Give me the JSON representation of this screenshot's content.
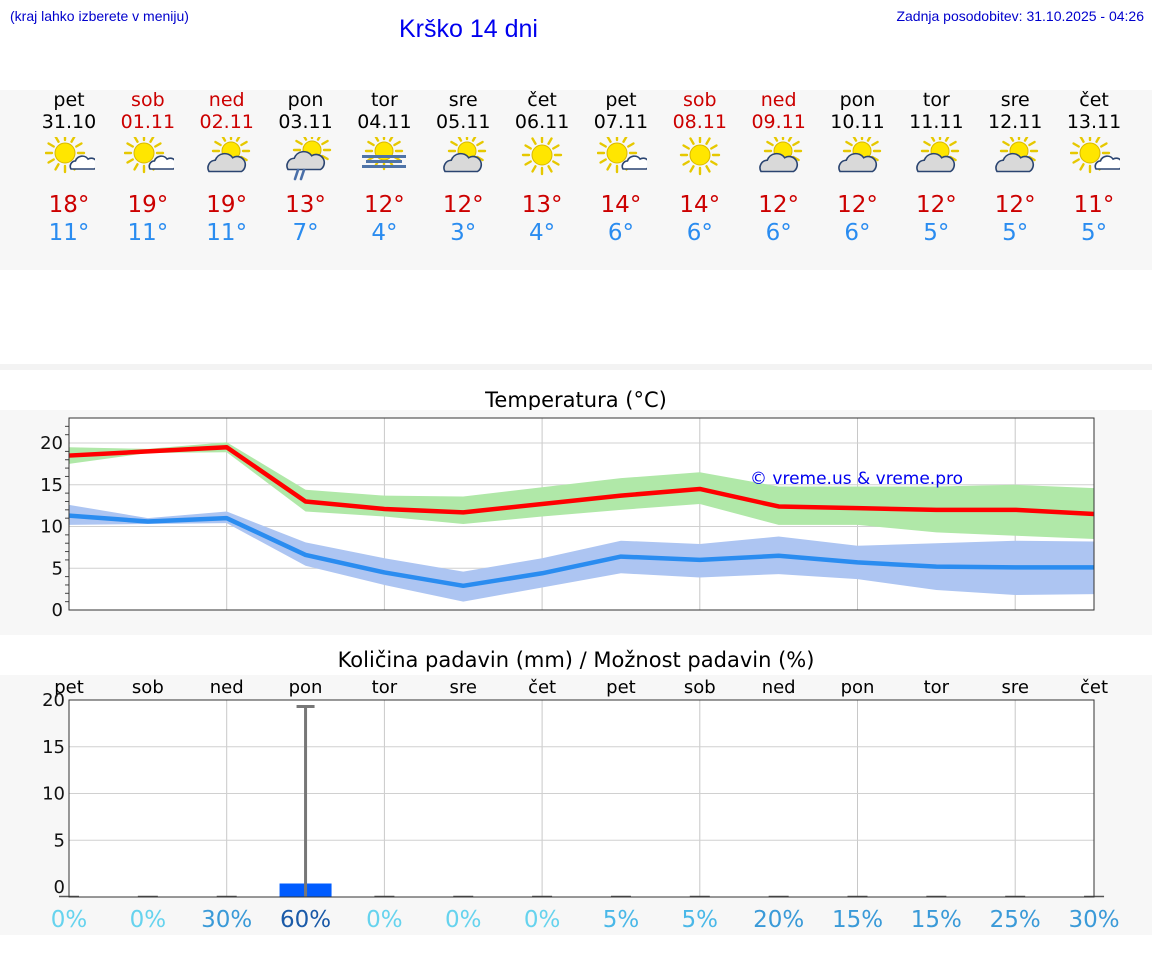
{
  "header": {
    "hint": "(kraj lahko izberete v meniju)",
    "title": "Krško 14 dni",
    "updated": "Zadnja posodobitev: 31.10.2025 - 04:26"
  },
  "colors": {
    "weekend": "#cc0000",
    "tmax": "#cc0000",
    "tmin": "#2a8cf0"
  },
  "days": [
    {
      "name": "pet",
      "date": "31.10",
      "weekend": false,
      "icon": "partly-cloudy-icon",
      "tmax": "18°",
      "tmin": "11°"
    },
    {
      "name": "sob",
      "date": "01.11",
      "weekend": true,
      "icon": "partly-cloudy-icon",
      "tmax": "19°",
      "tmin": "11°"
    },
    {
      "name": "ned",
      "date": "02.11",
      "weekend": true,
      "icon": "mostly-cloudy-icon",
      "tmax": "19°",
      "tmin": "11°"
    },
    {
      "name": "pon",
      "date": "03.11",
      "weekend": false,
      "icon": "cloudy-rain-icon",
      "tmax": "13°",
      "tmin": "7°"
    },
    {
      "name": "tor",
      "date": "04.11",
      "weekend": false,
      "icon": "fog-icon",
      "tmax": "12°",
      "tmin": "4°"
    },
    {
      "name": "sre",
      "date": "05.11",
      "weekend": false,
      "icon": "mostly-cloudy-icon",
      "tmax": "12°",
      "tmin": "3°"
    },
    {
      "name": "čet",
      "date": "06.11",
      "weekend": false,
      "icon": "sunny-icon",
      "tmax": "13°",
      "tmin": "4°"
    },
    {
      "name": "pet",
      "date": "07.11",
      "weekend": false,
      "icon": "partly-cloudy-icon",
      "tmax": "14°",
      "tmin": "6°"
    },
    {
      "name": "sob",
      "date": "08.11",
      "weekend": true,
      "icon": "sunny-icon",
      "tmax": "14°",
      "tmin": "6°"
    },
    {
      "name": "ned",
      "date": "09.11",
      "weekend": true,
      "icon": "mostly-cloudy-icon",
      "tmax": "12°",
      "tmin": "6°"
    },
    {
      "name": "pon",
      "date": "10.11",
      "weekend": false,
      "icon": "mostly-cloudy-icon",
      "tmax": "12°",
      "tmin": "6°"
    },
    {
      "name": "tor",
      "date": "11.11",
      "weekend": false,
      "icon": "mostly-cloudy-icon",
      "tmax": "12°",
      "tmin": "5°"
    },
    {
      "name": "sre",
      "date": "12.11",
      "weekend": false,
      "icon": "mostly-cloudy-icon",
      "tmax": "12°",
      "tmin": "5°"
    },
    {
      "name": "čet",
      "date": "13.11",
      "weekend": false,
      "icon": "partly-cloudy-icon",
      "tmax": "11°",
      "tmin": "5°"
    }
  ],
  "chart_data": [
    {
      "type": "line",
      "title": "Temperatura (°C)",
      "watermark": "© vreme.us & vreme.pro",
      "ylim": [
        0,
        23
      ],
      "yticks": [
        0,
        5,
        10,
        15,
        20
      ],
      "x": [
        0,
        1,
        2,
        3,
        4,
        5,
        6,
        7,
        8,
        9,
        10,
        11,
        12,
        13
      ],
      "series": [
        {
          "name": "Tmax",
          "color": "#ff0000",
          "band_color": "#b0e8a8",
          "values": [
            18.5,
            19,
            19.5,
            13,
            12.1,
            11.7,
            12.7,
            13.7,
            14.5,
            12.4,
            12.2,
            12.0,
            12.0,
            11.5
          ],
          "band_low": [
            17.5,
            18.8,
            18.9,
            11.8,
            11.2,
            10.3,
            11.2,
            12,
            12.7,
            10.2,
            10.2,
            9.3,
            8.9,
            8.5
          ],
          "band_high": [
            19.5,
            19.3,
            20.1,
            14.4,
            13.7,
            13.6,
            14.7,
            15.8,
            16.5,
            14.8,
            14.8,
            14.8,
            15.0,
            14.6
          ]
        },
        {
          "name": "Tmin",
          "color": "#2a8cf0",
          "band_color": "#adc5f2",
          "values": [
            11.3,
            10.6,
            11,
            6.6,
            4.5,
            2.9,
            4.4,
            6.4,
            6,
            6.5,
            5.7,
            5.2,
            5.1,
            5.1
          ],
          "band_low": [
            10.2,
            10.3,
            10.4,
            5.3,
            3.0,
            1.0,
            2.7,
            4.4,
            3.9,
            4.3,
            3.7,
            2.4,
            1.8,
            1.9
          ],
          "band_high": [
            12.6,
            11,
            11.8,
            8.1,
            6.2,
            4.6,
            6.2,
            8.3,
            7.9,
            8.8,
            7.7,
            8,
            8.3,
            8.2
          ]
        }
      ]
    },
    {
      "type": "bar",
      "title": "Količina padavin (mm) / Možnost padavin (%)",
      "ylim": [
        0,
        20
      ],
      "yticks": [
        0,
        5,
        10,
        15,
        20
      ],
      "categories": [
        "pet",
        "sob",
        "ned",
        "pon",
        "tor",
        "sre",
        "čet",
        "pet",
        "sob",
        "ned",
        "pon",
        "tor",
        "sre",
        "čet"
      ],
      "precip_mm": [
        0,
        0,
        0,
        1.5,
        0,
        0,
        0,
        0,
        0,
        0,
        0,
        0,
        0,
        0
      ],
      "precip_max_mm": [
        0,
        0,
        0,
        19.3,
        0,
        0,
        0,
        0,
        0,
        0,
        0,
        0,
        0,
        0
      ],
      "probability": [
        "0%",
        "0%",
        "30%",
        "60%",
        "0%",
        "0%",
        "0%",
        "5%",
        "5%",
        "20%",
        "15%",
        "15%",
        "25%",
        "30%"
      ],
      "probability_values": [
        0,
        0,
        30,
        60,
        0,
        0,
        0,
        5,
        5,
        20,
        15,
        15,
        25,
        30
      ]
    }
  ]
}
